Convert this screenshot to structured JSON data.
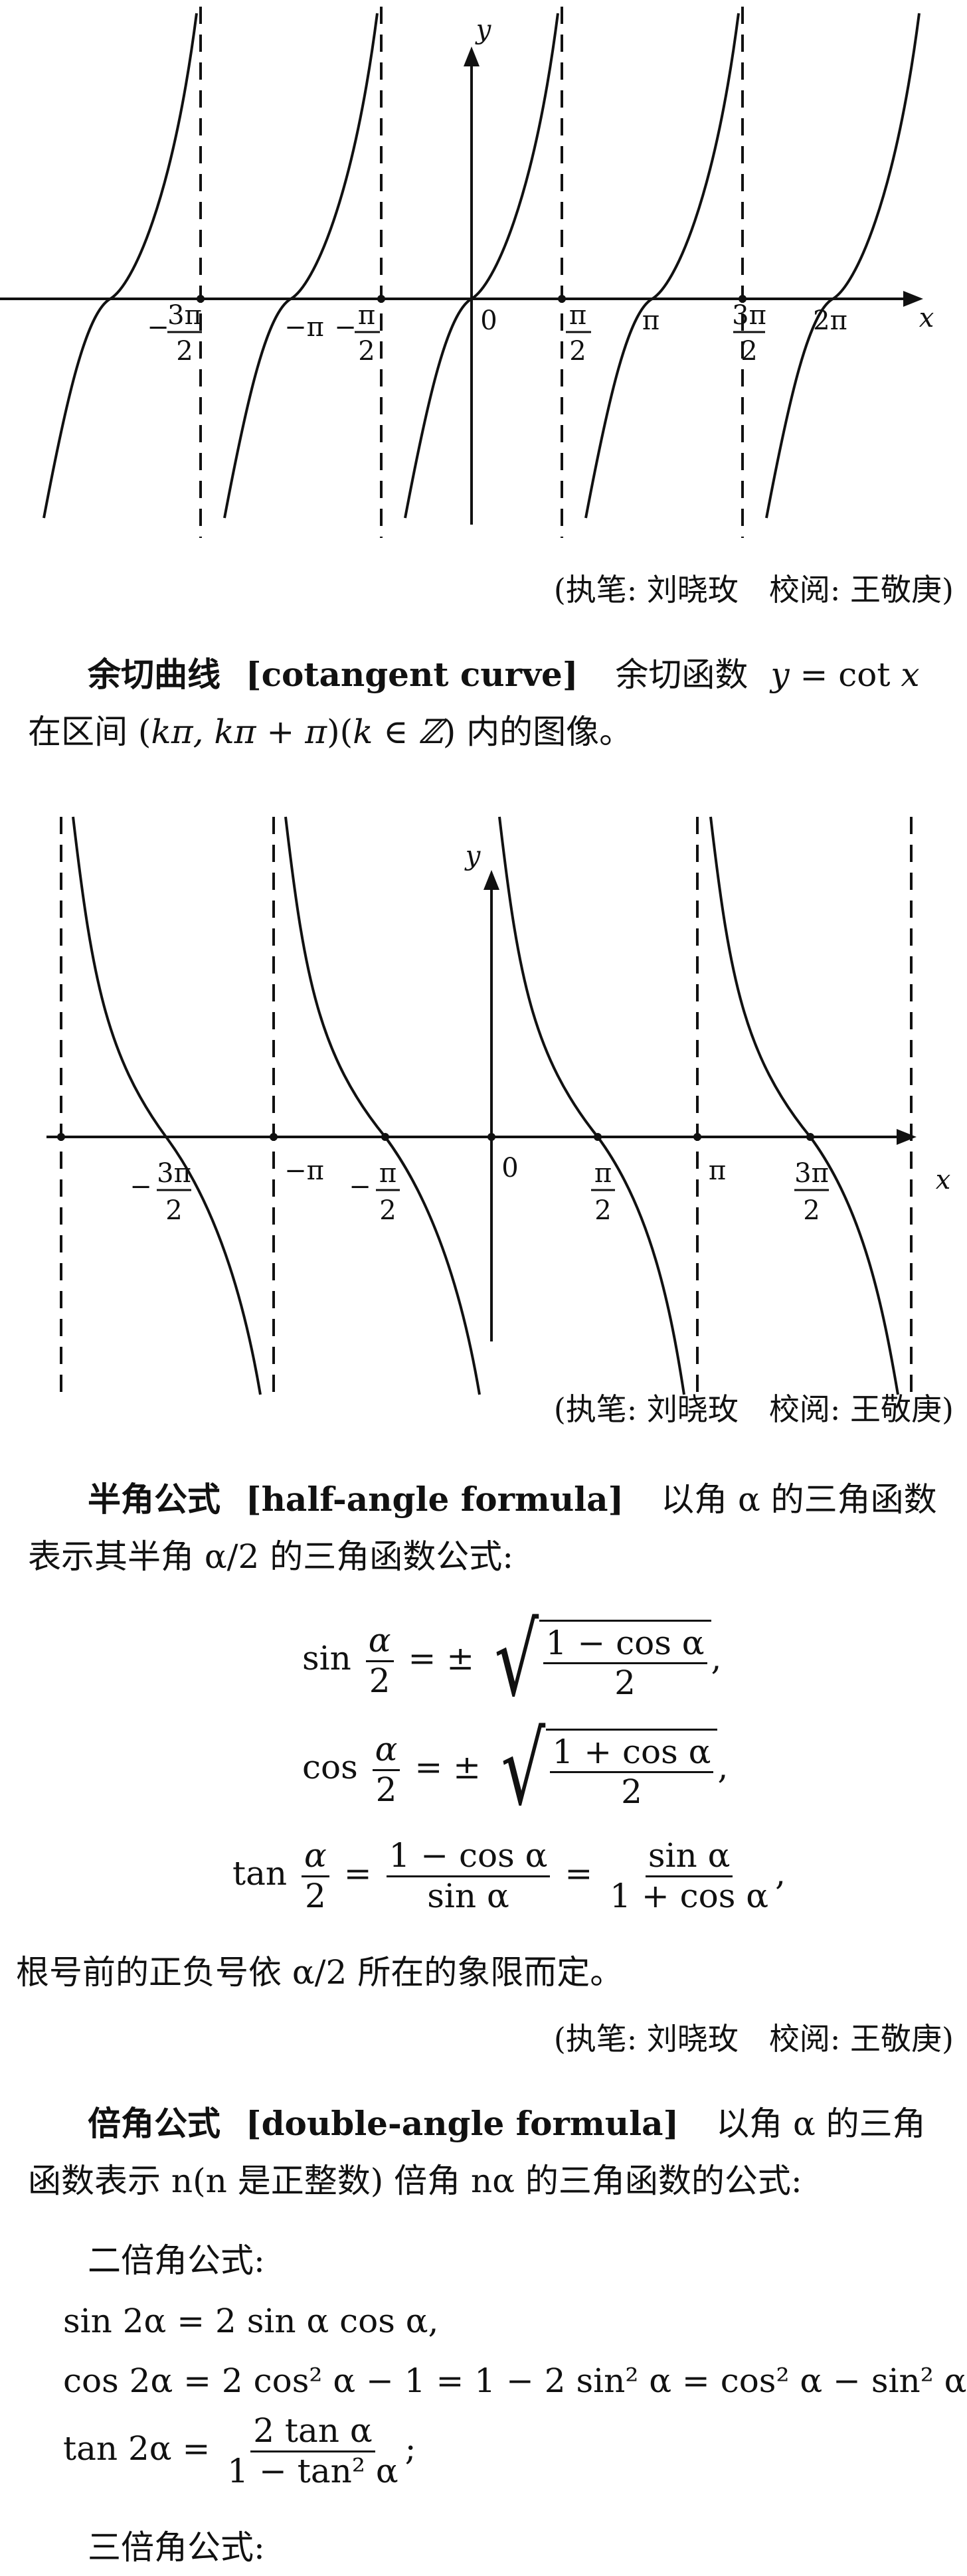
{
  "credits": {
    "c1": "(执笔: 刘晓玫　校阅: 王敬庚)",
    "c2": "(执笔: 刘晓玫　校阅: 王敬庚)",
    "c3": "(执笔: 刘晓玫　校阅: 王敬庚)"
  },
  "graph1": {
    "axis_x": "x",
    "axis_y": "y",
    "ticks": {
      "neg_3pi2_sign": "−",
      "neg_3pi2_num": "3π",
      "neg_3pi2_den": "2",
      "neg_pi": "−π",
      "neg_pi2_sign": "−",
      "neg_pi2_num": "π",
      "neg_pi2_den": "2",
      "zero": "0",
      "pi2_num": "π",
      "pi2_den": "2",
      "pi": "π",
      "three_pi2_num": "3π",
      "three_pi2_den": "2",
      "two_pi": "2π"
    }
  },
  "cot_entry": {
    "term": "余切曲线",
    "english": "[cotangent curve]",
    "def_a": "余切函数",
    "def_y": "y",
    "def_eq": " = ",
    "def_cot": "cot",
    "def_x": "x",
    "line2_a": "在区间 (",
    "line2_interval": "kπ, kπ + π",
    "line2_b": ")(",
    "line2_k": "k ∈ ℤ",
    "line2_c": ") 内的图像。"
  },
  "graph2": {
    "axis_x": "x",
    "axis_y": "y",
    "ticks": {
      "neg_3pi2_sign": "−",
      "neg_3pi2_num": "3π",
      "neg_3pi2_den": "2",
      "neg_pi": "−π",
      "neg_pi2_sign": "−",
      "neg_pi2_num": "π",
      "neg_pi2_den": "2",
      "zero": "0",
      "pi2_num": "π",
      "pi2_den": "2",
      "pi": "π",
      "three_pi2_num": "3π",
      "three_pi2_den": "2"
    }
  },
  "half_angle": {
    "term": "半角公式",
    "english": "[half-angle formula]",
    "line1_rest": "以角 α 的三角函数",
    "line2": "表示其半角 α/2 的三角函数公式:",
    "f1_lhs_fn": "sin",
    "f1_num": "α",
    "f1_den": "2",
    "f1_eq": "= ±",
    "f1_rad_num": "1 − cos α",
    "f1_rad_den": "2",
    "f1_end": ",",
    "f2_lhs_fn": "cos",
    "f2_num": "α",
    "f2_den": "2",
    "f2_eq": "= ±",
    "f2_rad_num": "1 + cos α",
    "f2_rad_den": "2",
    "f2_end": ",",
    "f3_lhs_fn": "tan",
    "f3_num": "α",
    "f3_den": "2",
    "f3_eq1": "=",
    "f3_a_num": "1 − cos α",
    "f3_a_den": "sin α",
    "f3_eq2": "=",
    "f3_b_num": "sin α",
    "f3_b_den": "1 + cos α",
    "f3_end": ",",
    "note": "根号前的正负号依 α/2 所在的象限而定。"
  },
  "double_angle": {
    "term": "倍角公式",
    "english": "[double-angle formula]",
    "line1_rest": "以角 α 的三角",
    "line2": "函数表示 n(n 是正整数) 倍角 nα 的三角函数的公式:",
    "sub1": "二倍角公式:",
    "eq_sin": "sin 2α = 2 sin α cos α,",
    "eq_cos": "cos 2α = 2 cos² α − 1 = 1 − 2 sin² α = cos² α − sin² α,",
    "eq_tan_lhs": "tan 2α =",
    "eq_tan_num": "2 tan α",
    "eq_tan_den": "1 − tan² α",
    "eq_tan_end": ";",
    "sub2": "三倍角公式:"
  }
}
